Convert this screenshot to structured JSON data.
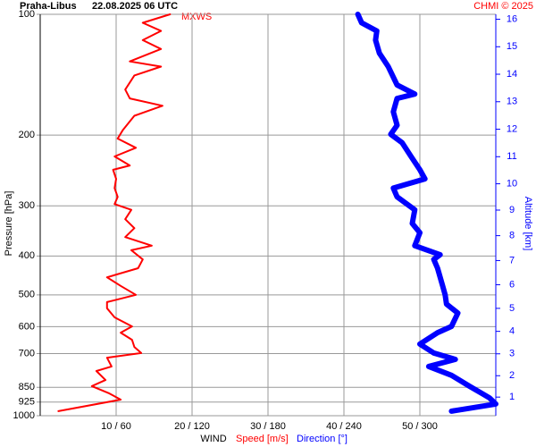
{
  "chart_data": {
    "type": "line",
    "title": "Praha-Libus",
    "subtitle": "22.08.2025 06 UTC",
    "credit": "CHMI © 2025",
    "annotation": "MXWS",
    "xlabel": "WIND",
    "ylabel": "Pressure [hPa]",
    "y2label": "Altitude [km]",
    "ylog": true,
    "grid": true,
    "ylim": [
      1000,
      100
    ],
    "yticks": [
      100,
      200,
      300,
      400,
      500,
      600,
      700,
      850,
      925,
      1000
    ],
    "xlim": [
      0,
      60
    ],
    "x2lim": [
      0,
      360
    ],
    "xticks": [
      {
        "value": 10,
        "label": "10 / 60"
      },
      {
        "value": 20,
        "label": "20 / 120"
      },
      {
        "value": 30,
        "label": "30 / 180"
      },
      {
        "value": 40,
        "label": "40 / 240"
      },
      {
        "value": 50,
        "label": "50 / 300"
      }
    ],
    "y2ticks": [
      1,
      2,
      3,
      4,
      5,
      6,
      7,
      8,
      9,
      10,
      11,
      12,
      13,
      14,
      15,
      16
    ],
    "y2color": "#0000ff",
    "series": [
      {
        "name": "Speed [m/s]",
        "color": "#ff0000",
        "pressure": [
          974,
          912,
          880,
          844,
          815,
          774,
          754,
          717,
          698,
          674,
          647,
          621,
          599,
          569,
          540,
          521,
          500,
          475,
          452,
          429,
          408,
          387,
          377,
          359,
          341,
          324,
          307,
          297,
          285,
          271,
          257,
          244,
          238,
          226,
          215,
          204,
          194,
          179,
          169,
          162,
          154,
          142,
          135,
          131,
          122,
          116,
          110,
          105,
          100
        ],
        "values": [
          2.4,
          10.6,
          9.1,
          6.8,
          8.6,
          7.4,
          9.4,
          8.8,
          13.3,
          12.4,
          12.1,
          10.6,
          12.1,
          9.8,
          8.8,
          8.8,
          12.6,
          10.6,
          8.8,
          12.9,
          13.5,
          12.0,
          14.7,
          11.2,
          12.4,
          11.2,
          12.0,
          9.8,
          10.2,
          9.8,
          10.0,
          9.6,
          11.8,
          9.8,
          12.6,
          10.2,
          10.9,
          12.4,
          16.1,
          11.8,
          11.2,
          12.4,
          15.9,
          11.8,
          15.9,
          13.5,
          15.9,
          13.5,
          17.1
        ]
      },
      {
        "name": "Direction [°]",
        "color": "#0000ff",
        "axis": "x2",
        "pressure": [
          974,
          935,
          903,
          880,
          844,
          793,
          754,
          724,
          698,
          663,
          621,
          599,
          555,
          527,
          500,
          475,
          429,
          408,
          397,
          377,
          350,
          332,
          307,
          285,
          271,
          257,
          244,
          226,
          209,
          199,
          189,
          175,
          162,
          158,
          150,
          135,
          125,
          116,
          110,
          105,
          100
        ],
        "values": [
          325,
          360,
          355,
          349,
          339,
          325,
          307,
          328,
          311,
          300,
          314,
          325,
          330,
          321,
          320,
          318,
          314,
          311,
          316,
          296,
          300,
          294,
          296,
          282,
          279,
          304,
          300,
          293,
          286,
          277,
          282,
          279,
          282,
          296,
          282,
          275,
          268,
          265,
          266,
          254,
          251
        ]
      }
    ]
  }
}
